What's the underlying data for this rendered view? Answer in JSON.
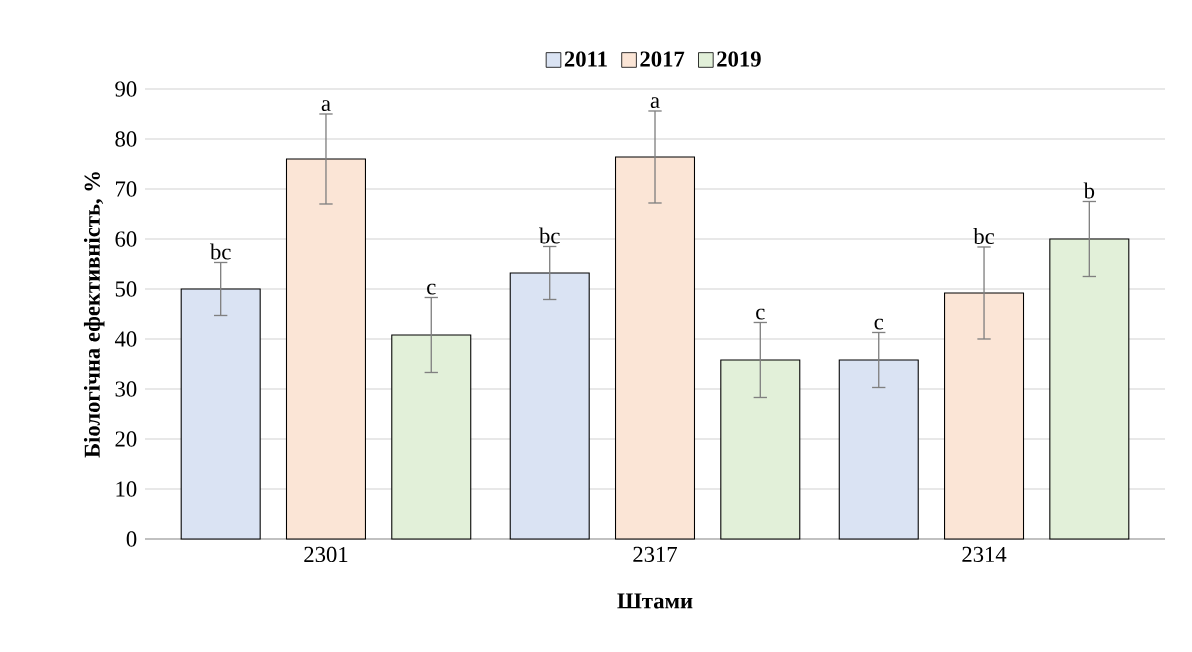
{
  "chart_data": {
    "type": "bar",
    "xlabel": "Штами",
    "ylabel": "Біологічна ефективність, %",
    "categories": [
      "2301",
      "2317",
      "2314"
    ],
    "series": [
      {
        "name": "2011",
        "color": "#dae3f3",
        "values": [
          50,
          53.2,
          35.8
        ],
        "errors": [
          5.3,
          5.3,
          5.5
        ],
        "value_labels": [
          "bc",
          "bc",
          "c"
        ]
      },
      {
        "name": "2017",
        "color": "#fbe5d6",
        "values": [
          76,
          76.4,
          49.2
        ],
        "errors": [
          9,
          9.2,
          9.2
        ],
        "value_labels": [
          "a",
          "a",
          "bc"
        ]
      },
      {
        "name": "2019",
        "color": "#e2f0d9",
        "values": [
          40.8,
          35.8,
          60
        ],
        "errors": [
          7.5,
          7.5,
          7.5
        ],
        "value_labels": [
          "c",
          "c",
          "b"
        ]
      }
    ],
    "ylim": [
      0,
      90
    ],
    "yticks": [
      0,
      10,
      20,
      30,
      40,
      50,
      60,
      70,
      80,
      90
    ],
    "grid": "y",
    "legend": "top"
  }
}
